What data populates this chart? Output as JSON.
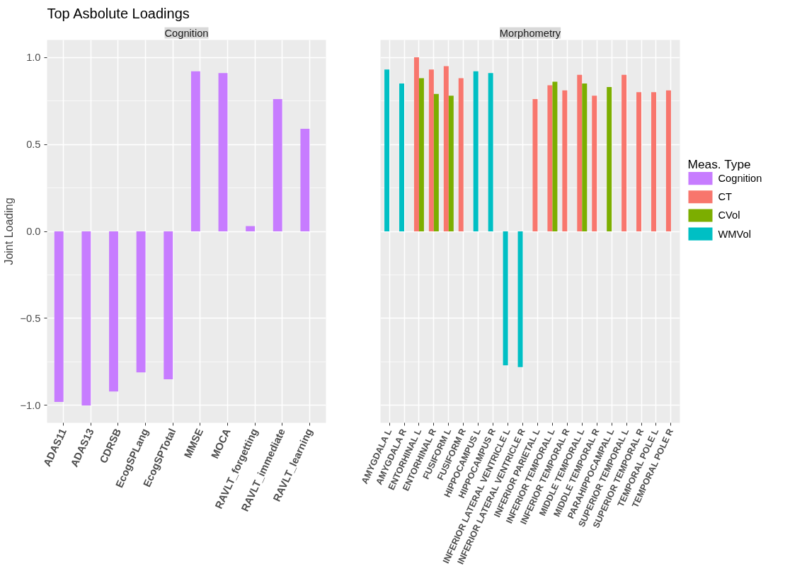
{
  "chart_data": [
    {
      "type": "bar",
      "title": "Top Asbolute Loadings",
      "subtitle": "Cognition",
      "ylabel": "Joint Loading",
      "categories": [
        "ADAS11",
        "ADAS13",
        "CDRSB",
        "EcogSPLang",
        "EcogSPTotal",
        "MMSE",
        "MOCA",
        "RAVLT_forgetting",
        "RAVLT_immediate",
        "RAVLT_learning"
      ],
      "series": [
        {
          "name": "Cognition",
          "color": "#c77cff",
          "values": [
            -0.98,
            -1.0,
            -0.92,
            -0.81,
            -0.85,
            0.92,
            0.91,
            0.03,
            0.76,
            0.59
          ]
        }
      ],
      "ylim": [
        -1.1,
        1.1
      ],
      "yticks": [
        {
          "value": -1.0,
          "label": "−1.0"
        },
        {
          "value": -0.5,
          "label": "−0.5"
        },
        {
          "value": 0,
          "label": "0.0"
        },
        {
          "value": 0.5,
          "label": "0.5"
        },
        {
          "value": 1.0,
          "label": "1.0"
        }
      ],
      "grid": true
    },
    {
      "type": "bar",
      "subtitle": "Morphometry",
      "legend_title": "Meas. Type",
      "legend": "right",
      "tick_labels": "x",
      "categories": [
        "AMYGDALA L",
        "AMYGDALA R",
        "ENTORHINAL L",
        "ENTORHINAL R",
        "FUSIFORM L",
        "FUSIFORM R",
        "HIPPOCAMPUS L",
        "HIPPOCAMPUS R",
        "INFERIOR LATERAL VENTRICLE L",
        "INFERIOR LATERAL VENTRICLE R",
        "INFERIOR PARIETAL L",
        "INFERIOR TEMPORAL L",
        "INFERIOR TEMPORAL R",
        "MIDDLE TEMPORAL L",
        "MIDDLE TEMPORAL R",
        "PARAHIPPOCAMPAL L",
        "SUPERIOR TEMPORAL L",
        "SUPERIOR TEMPORAL R",
        "TEMPORAL POLE L",
        "TEMPORAL POLE R"
      ],
      "series": [
        {
          "name": "CT",
          "color": "#f8766d",
          "values": [
            null,
            null,
            1.0,
            0.93,
            0.95,
            0.88,
            null,
            null,
            null,
            null,
            0.76,
            0.84,
            0.81,
            0.9,
            0.78,
            null,
            0.9,
            0.8,
            0.8,
            0.81
          ]
        },
        {
          "name": "CVol",
          "color": "#7cae00",
          "values": [
            null,
            null,
            0.88,
            0.79,
            0.78,
            null,
            null,
            null,
            null,
            null,
            null,
            0.86,
            null,
            0.85,
            null,
            0.83,
            null,
            null,
            null,
            null
          ]
        },
        {
          "name": "WMVol",
          "color": "#00bfc4",
          "values": [
            0.93,
            0.85,
            null,
            null,
            null,
            null,
            0.92,
            0.91,
            -0.77,
            -0.78,
            null,
            null,
            null,
            null,
            null,
            null,
            null,
            null,
            null,
            null
          ]
        }
      ],
      "ylim": [
        -1.1,
        1.1
      ],
      "yticks": [
        -1.0,
        -0.5,
        0,
        0.5,
        1.0
      ],
      "grid": true
    }
  ]
}
